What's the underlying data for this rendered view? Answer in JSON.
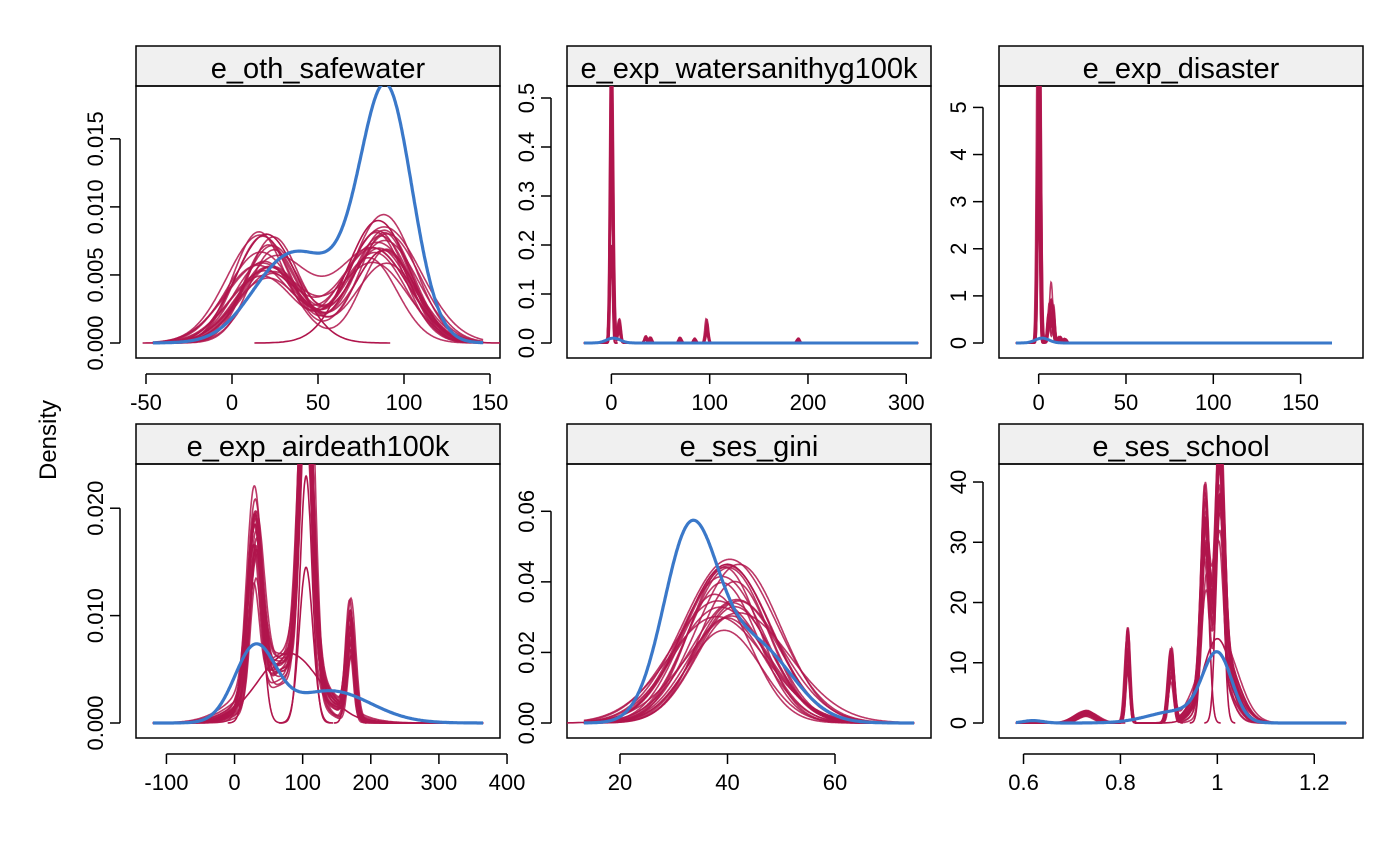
{
  "chart_data": {
    "type": "line",
    "ylabel": "Density",
    "xlabel": "",
    "series_colors": {
      "observed": "#3a78c9",
      "imputed": "#b0154c"
    },
    "panels": [
      {
        "title": "e_oth_safewater",
        "xlim": [
          -50,
          150
        ],
        "ylim": [
          0,
          0.018
        ],
        "xticks": [
          -50,
          0,
          50,
          100,
          150
        ],
        "yticks": [
          0.0,
          0.005,
          0.01,
          0.015
        ],
        "ytick_labels": [
          "0.000",
          "0.005",
          "0.010",
          "0.015"
        ],
        "kind": "bimodal",
        "observed_peaks": [
          [
            28,
            0.004,
            20
          ],
          [
            90,
            0.0175,
            15
          ],
          [
            55,
            0.004,
            25
          ]
        ],
        "imputed_peaks": [
          [
            20,
            0.008,
            18
          ],
          [
            85,
            0.009,
            18
          ]
        ]
      },
      {
        "title": "e_exp_watersanithyg100k",
        "xlim": [
          -35,
          315
        ],
        "ylim": [
          0,
          0.5
        ],
        "xticks": [
          0,
          100,
          200,
          300
        ],
        "yticks": [
          0.0,
          0.1,
          0.2,
          0.3,
          0.4,
          0.5
        ],
        "ytick_labels": [
          "0.0",
          "0.1",
          "0.2",
          "0.3",
          "0.4",
          "0.5"
        ],
        "kind": "spike",
        "spikes": [
          [
            0,
            0.48
          ],
          [
            0,
            0.2
          ],
          [
            2,
            0.1
          ],
          [
            8,
            0.05
          ],
          [
            35,
            0.015
          ],
          [
            40,
            0.012
          ],
          [
            70,
            0.012
          ],
          [
            85,
            0.01
          ],
          [
            97,
            0.05
          ],
          [
            190,
            0.01
          ]
        ],
        "tail_end": 312
      },
      {
        "title": "e_exp_disaster",
        "xlim": [
          -17,
          180
        ],
        "ylim": [
          0,
          5.2
        ],
        "xticks": [
          0,
          50,
          100,
          150
        ],
        "yticks": [
          0,
          1,
          2,
          3,
          4,
          5
        ],
        "ytick_labels": [
          "0",
          "1",
          "2",
          "3",
          "4",
          "5"
        ],
        "kind": "spike",
        "spikes": [
          [
            0,
            5.15
          ],
          [
            0,
            3.3
          ],
          [
            1,
            0.8
          ],
          [
            6,
            0.85
          ],
          [
            8,
            0.9
          ],
          [
            12,
            0.15
          ],
          [
            15,
            0.1
          ]
        ],
        "tail_end": 168
      },
      {
        "title": "e_exp_airdeath100k",
        "xlim": [
          -130,
          375
        ],
        "ylim": [
          0,
          0.023
        ],
        "xticks": [
          -100,
          0,
          100,
          200,
          300,
          400
        ],
        "yticks": [
          0.0,
          0.01,
          0.02
        ],
        "ytick_labels": [
          "0.000",
          "0.010",
          "0.020"
        ],
        "kind": "multi",
        "observed_peaks": [
          [
            30,
            0.0068,
            30
          ],
          [
            140,
            0.003,
            60
          ]
        ],
        "imputed_peaks": [
          [
            30,
            0.0185,
            10
          ],
          [
            105,
            0.023,
            9
          ],
          [
            105,
            0.0145,
            10
          ],
          [
            170,
            0.0105,
            6
          ],
          [
            80,
            0.0065,
            45
          ]
        ]
      },
      {
        "title": "e_ses_gini",
        "xlim": [
          12,
          76
        ],
        "ylim": [
          0,
          0.07
        ],
        "xticks": [
          20,
          40,
          60
        ],
        "yticks": [
          0.0,
          0.02,
          0.04,
          0.06
        ],
        "ytick_labels": [
          "0.00",
          "0.02",
          "0.04",
          "0.06"
        ],
        "kind": "unimodal",
        "observed_peaks": [
          [
            33,
            0.052,
            5
          ],
          [
            45,
            0.022,
            7
          ]
        ],
        "imputed_peaks": [
          [
            40,
            0.045,
            8
          ]
        ]
      },
      {
        "title": "e_ses_school",
        "xlim": [
          0.57,
          1.28
        ],
        "ylim": [
          0,
          41
        ],
        "xticks": [
          0.6,
          0.8,
          1.0,
          1.2
        ],
        "yticks": [
          0,
          10,
          20,
          30,
          40
        ],
        "ytick_labels": [
          "0",
          "10",
          "20",
          "30",
          "40"
        ],
        "kind": "multi",
        "observed_peaks": [
          [
            1.0,
            11,
            0.03
          ],
          [
            0.62,
            0.4,
            0.02
          ],
          [
            0.92,
            2,
            0.06
          ]
        ],
        "imputed_peaks": [
          [
            1.005,
            38,
            0.008
          ],
          [
            0.975,
            29,
            0.008
          ],
          [
            0.815,
            15.5,
            0.005
          ],
          [
            0.905,
            12,
            0.006
          ],
          [
            1.0,
            14,
            0.03
          ],
          [
            0.73,
            2,
            0.02
          ]
        ]
      }
    ]
  }
}
